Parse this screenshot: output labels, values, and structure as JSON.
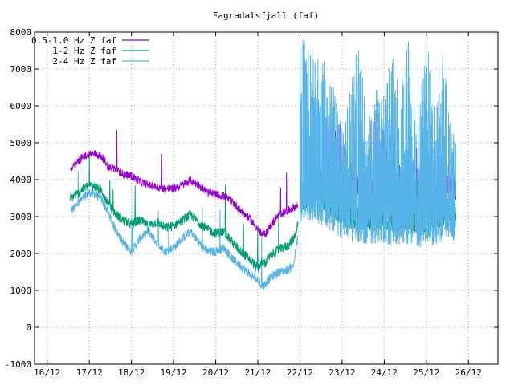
{
  "chart_data": {
    "type": "line",
    "title": "Fagradalsfjall (faf)",
    "xlabel": "",
    "ylabel": "",
    "x_ticks": [
      "16/12",
      "17/12",
      "18/12",
      "19/12",
      "20/12",
      "21/12",
      "22/12",
      "23/12",
      "24/12",
      "25/12",
      "26/12"
    ],
    "xlim_days": [
      15.7,
      26.7
    ],
    "ylim": [
      -1000,
      8000
    ],
    "y_ticks": [
      -1000,
      0,
      1000,
      2000,
      3000,
      4000,
      5000,
      6000,
      7000,
      8000
    ],
    "grid": true,
    "legend_position": "top-left",
    "series": [
      {
        "name": "0.5-1.0 Hz Z faf",
        "color": "#9400d3",
        "x_days": [
          16.55,
          16.7,
          16.85,
          17.0,
          17.15,
          17.3,
          17.45,
          17.6,
          17.8,
          18.0,
          18.2,
          18.4,
          18.6,
          18.8,
          19.0,
          19.2,
          19.4,
          19.6,
          19.8,
          20.0,
          20.2,
          20.4,
          20.6,
          20.8,
          21.0,
          21.1,
          21.2,
          21.3,
          21.5,
          21.7,
          21.85,
          21.95
        ],
        "y": [
          4250,
          4450,
          4620,
          4700,
          4700,
          4620,
          4350,
          4300,
          4150,
          4100,
          3950,
          3850,
          3800,
          3750,
          3750,
          3850,
          3980,
          3850,
          3650,
          3600,
          3550,
          3400,
          3150,
          2950,
          2650,
          2500,
          2550,
          2750,
          3050,
          3150,
          3250,
          3300
        ]
      },
      {
        "name": "1-2 Hz Z faf",
        "color": "#009e73",
        "x_days": [
          16.55,
          16.7,
          16.85,
          17.0,
          17.15,
          17.3,
          17.45,
          17.6,
          17.8,
          18.0,
          18.2,
          18.4,
          18.6,
          18.8,
          19.0,
          19.2,
          19.4,
          19.6,
          19.8,
          20.0,
          20.2,
          20.4,
          20.6,
          20.8,
          21.0,
          21.1,
          21.2,
          21.3,
          21.5,
          21.7,
          21.85,
          21.95
        ],
        "y": [
          3500,
          3600,
          3750,
          3850,
          3800,
          3700,
          3350,
          3100,
          2900,
          2800,
          2900,
          2750,
          2850,
          2700,
          2750,
          2900,
          3050,
          2850,
          2650,
          2550,
          2600,
          2300,
          2050,
          1850,
          1600,
          1750,
          1750,
          1950,
          2100,
          2200,
          2400,
          2800
        ]
      },
      {
        "name": "2-4 Hz Z faf",
        "color": "#56b4e9",
        "x_days": [
          16.55,
          16.7,
          16.85,
          17.0,
          17.15,
          17.3,
          17.45,
          17.6,
          17.8,
          18.0,
          18.2,
          18.4,
          18.6,
          18.8,
          19.0,
          19.2,
          19.4,
          19.6,
          19.8,
          20.0,
          20.2,
          20.4,
          20.6,
          20.8,
          21.0,
          21.1,
          21.2,
          21.3,
          21.5,
          21.7,
          21.85,
          21.95
        ],
        "y": [
          3150,
          3300,
          3500,
          3650,
          3600,
          3450,
          3100,
          2700,
          2300,
          2050,
          2400,
          2600,
          2300,
          2050,
          2150,
          2400,
          2600,
          2300,
          2050,
          2050,
          2150,
          1850,
          1650,
          1450,
          1250,
          1100,
          1200,
          1350,
          1500,
          1550,
          1700,
          2450
        ]
      }
    ],
    "noisy_band_22_to_25_7": {
      "x_days": [
        22.0,
        22.2,
        22.4,
        22.6,
        22.8,
        23.0,
        23.2,
        23.4,
        23.6,
        23.8,
        24.0,
        24.2,
        24.4,
        24.6,
        24.8,
        25.0,
        25.2,
        25.4,
        25.6,
        25.7
      ],
      "violet_base": [
        3800,
        3900,
        3900,
        3850,
        3900,
        3900,
        3900,
        3850,
        3800,
        3800,
        3750,
        3750,
        3800,
        3750,
        3700,
        3750,
        3700,
        3800,
        3900,
        3700
      ],
      "green_base": [
        3500,
        3600,
        3700,
        3500,
        3300,
        3100,
        3000,
        3000,
        2950,
        3000,
        2950,
        2950,
        3000,
        3000,
        2900,
        2900,
        2950,
        3100,
        3200,
        3000
      ],
      "blue_base": [
        3600,
        3800,
        3700,
        3600,
        3400,
        3300,
        3200,
        3200,
        3150,
        3150,
        3100,
        3100,
        3150,
        3100,
        3050,
        3100,
        3100,
        3250,
        3300,
        3100
      ],
      "blue_peak": [
        8000,
        8000,
        7800,
        7200,
        6500,
        5500,
        6500,
        8000,
        5500,
        6500,
        6500,
        8000,
        6500,
        8000,
        5500,
        8000,
        6000,
        7500,
        5500,
        5000
      ]
    }
  }
}
